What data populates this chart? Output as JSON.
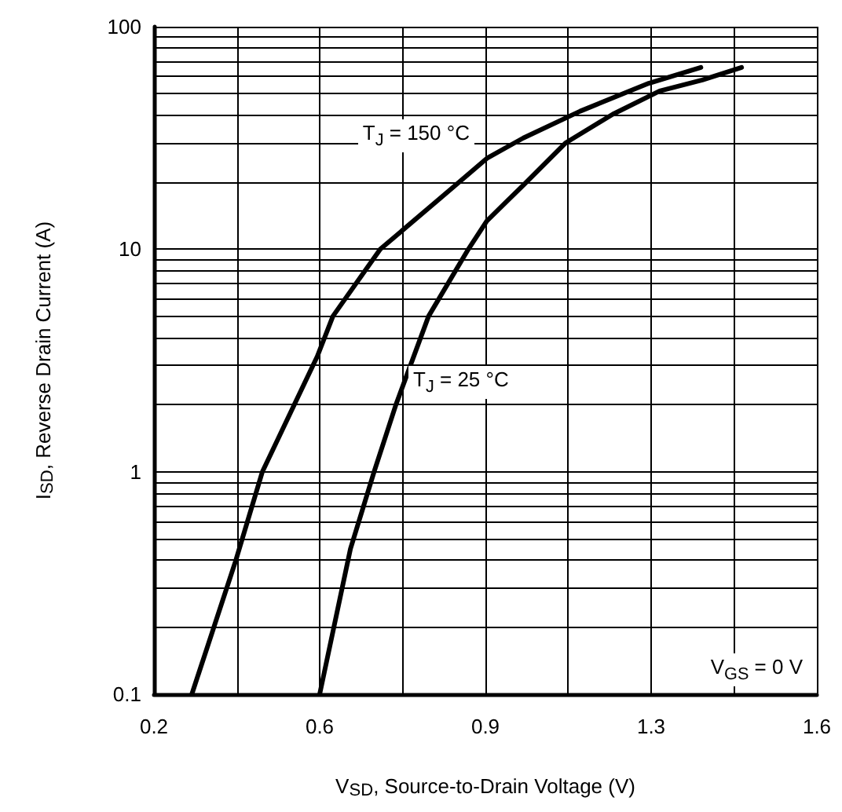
{
  "chart_data": {
    "type": "line",
    "xlabel": "V$_{SD}$, Source-to-Drain Voltage (V)",
    "ylabel": "I$_{SD}$, Reverse Drain Current (A)",
    "annotations": [
      "V$_{GS}$ = 0 V"
    ],
    "series": [
      {
        "name": "T$_{J}$ = 150 °C",
        "color": "#000000",
        "x": [
          0.28,
          0.373,
          0.429,
          0.545,
          0.578,
          0.678,
          0.837,
          0.903,
          0.98,
          1.1,
          1.245,
          1.355
        ],
        "values": [
          0.1,
          0.4,
          1,
          3.3,
          5,
          10,
          19.4,
          25.6,
          31.6,
          41.7,
          55.7,
          65.6
        ]
      },
      {
        "name": "T$_{J}$ = 25 °C",
        "color": "#000000",
        "x": [
          0.55,
          0.615,
          0.665,
          0.711,
          0.78,
          0.864,
          0.903,
          0.98,
          1.07,
          1.169,
          1.268,
          1.358,
          1.441
        ],
        "values": [
          0.1,
          0.45,
          1,
          2,
          5,
          10,
          13.4,
          19.4,
          30.1,
          40.4,
          51.4,
          57.6,
          65.6
        ]
      }
    ],
    "xlim": [
      0.2,
      1.6
    ],
    "xticks": [
      0.2,
      {
        "value": 0.375,
        "label": null
      },
      {
        "value": 0.55,
        "label": "0.6"
      },
      {
        "value": 0.725,
        "label": null
      },
      0.9,
      {
        "value": 1.075,
        "label": null
      },
      {
        "value": 1.25,
        "label": "1.3"
      },
      {
        "value": 1.425,
        "label": null
      },
      1.6
    ],
    "ylim": [
      0.1,
      100
    ],
    "yticks": [
      0.1,
      {
        "value": 0.2,
        "label": null
      },
      {
        "value": 0.3,
        "label": null
      },
      {
        "value": 0.4,
        "label": null
      },
      {
        "value": 0.5,
        "label": null
      },
      {
        "value": 0.6,
        "label": null
      },
      {
        "value": 0.7,
        "label": null
      },
      {
        "value": 0.8,
        "label": null
      },
      {
        "value": 0.9,
        "label": null
      },
      1,
      {
        "value": 2,
        "label": null
      },
      {
        "value": 3,
        "label": null
      },
      {
        "value": 4,
        "label": null
      },
      {
        "value": 5,
        "label": null
      },
      {
        "value": 6,
        "label": null
      },
      {
        "value": 7,
        "label": null
      },
      {
        "value": 8,
        "label": null
      },
      {
        "value": 9,
        "label": null
      },
      10,
      {
        "value": 20,
        "label": null
      },
      {
        "value": 30,
        "label": null
      },
      {
        "value": 40,
        "label": null
      },
      {
        "value": 50,
        "label": null
      },
      {
        "value": 60,
        "label": null
      },
      {
        "value": 70,
        "label": null
      },
      {
        "value": 80,
        "label": null
      },
      {
        "value": 90,
        "label": null
      },
      100
    ],
    "log": "y",
    "grid": true,
    "legend": false,
    "marker": "none",
    "line_style": "solid"
  }
}
